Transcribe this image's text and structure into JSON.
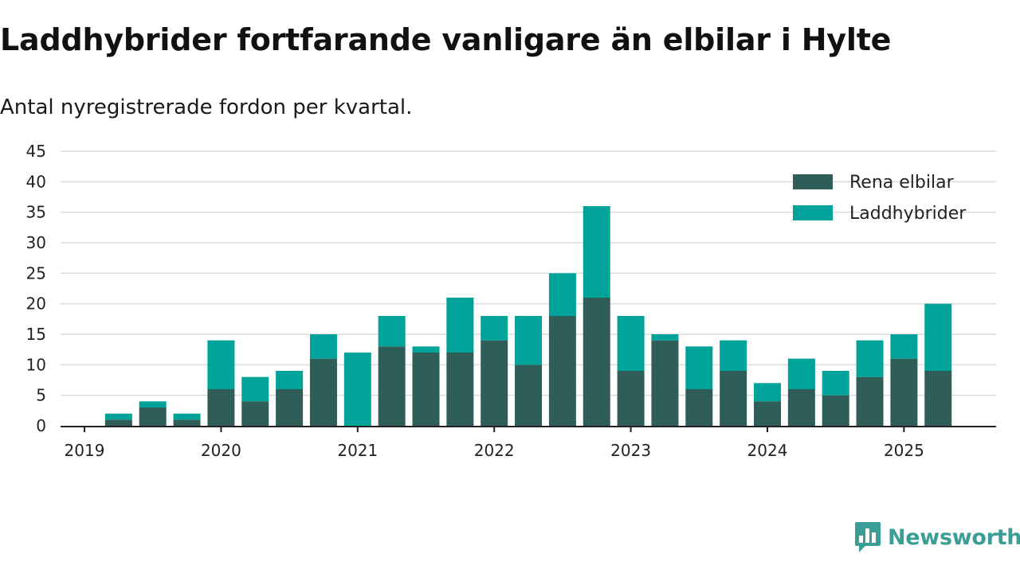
{
  "header": {
    "title": "Laddhybrider fortfarande vanligare än elbilar i Hylte",
    "subtitle": "Antal nyregistrerade fordon per kvartal."
  },
  "branding": {
    "name": "Newsworthy",
    "logo_icon": "bar-chart-speech-bubble-icon",
    "color": "#3a9e97"
  },
  "chart_data": {
    "type": "bar",
    "stacked": true,
    "x_ticks": [
      "2019",
      "2020",
      "2021",
      "2022",
      "2023",
      "2024",
      "2025"
    ],
    "categories": [
      "2019-Q1",
      "2019-Q2",
      "2019-Q3",
      "2019-Q4",
      "2020-Q1",
      "2020-Q2",
      "2020-Q3",
      "2020-Q4",
      "2021-Q1",
      "2021-Q2",
      "2021-Q3",
      "2021-Q4",
      "2022-Q1",
      "2022-Q2",
      "2022-Q3",
      "2022-Q4",
      "2023-Q1",
      "2023-Q2",
      "2023-Q3",
      "2023-Q4",
      "2024-Q1",
      "2024-Q2",
      "2024-Q3",
      "2024-Q4",
      "2025-Q1",
      "2025-Q2"
    ],
    "series": [
      {
        "name": "Rena elbilar",
        "color": "#2f5d58",
        "values": [
          0,
          1,
          3,
          1,
          6,
          4,
          6,
          11,
          0,
          13,
          12,
          12,
          14,
          10,
          18,
          21,
          9,
          14,
          6,
          9,
          4,
          6,
          5,
          8,
          11,
          9
        ]
      },
      {
        "name": "Laddhybrider",
        "color": "#00a39a",
        "values": [
          0,
          1,
          1,
          1,
          8,
          4,
          3,
          4,
          12,
          5,
          1,
          9,
          4,
          8,
          7,
          15,
          9,
          1,
          7,
          5,
          3,
          5,
          4,
          6,
          4,
          11
        ]
      }
    ],
    "y_ticks": [
      0,
      5,
      10,
      15,
      20,
      25,
      30,
      35,
      40,
      45
    ],
    "ylim": [
      0,
      45
    ],
    "grid": true,
    "legend_position": "top-right"
  }
}
